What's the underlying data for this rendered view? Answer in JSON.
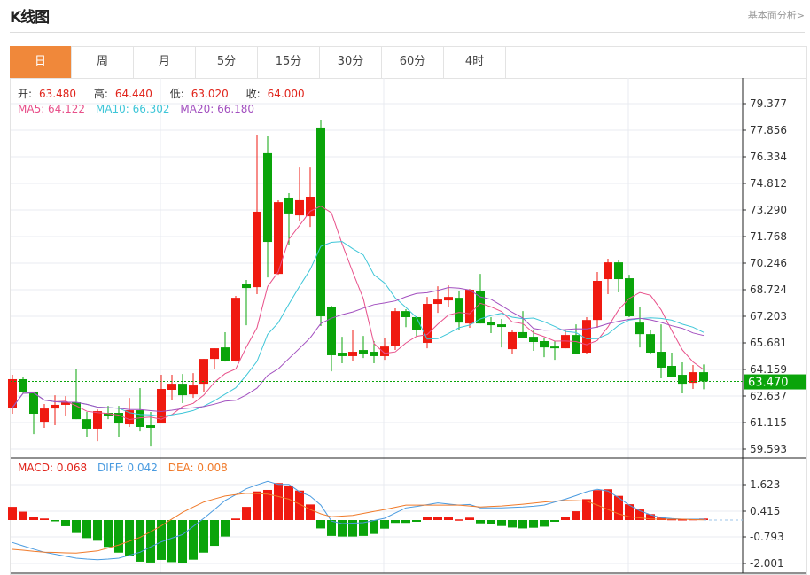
{
  "header": {
    "title": "K线图",
    "link": "基本面分析>"
  },
  "tabs": [
    {
      "label": "日",
      "active": true
    },
    {
      "label": "周"
    },
    {
      "label": "月"
    },
    {
      "label": "5分"
    },
    {
      "label": "15分"
    },
    {
      "label": "30分"
    },
    {
      "label": "60分"
    },
    {
      "label": "4时"
    }
  ],
  "ohlc_legend": {
    "open_label": "开:",
    "open": "63.480",
    "high_label": "高:",
    "high": "64.440",
    "low_label": "低:",
    "low": "63.020",
    "close_label": "收:",
    "close": "64.000"
  },
  "ma_legend": {
    "ma5": "MA5: 64.122",
    "ma10": "MA10: 66.302",
    "ma20": "MA20: 66.180"
  },
  "macd_legend": {
    "macd": "MACD: 0.068",
    "diff": "DIFF: 0.042",
    "dea": "DEA: 0.008"
  },
  "colors": {
    "up": "#0aa40a",
    "down": "#ef1a10",
    "ma5": "#e8508a",
    "ma10": "#3ec6d8",
    "ma20": "#a24fbf",
    "diff": "#4a9be0",
    "dea": "#f07a2a",
    "accent": "#f0883a"
  },
  "current_price": "63.470",
  "chart_data": [
    {
      "type": "candlestick",
      "y_ticks": [
        "79.377",
        "77.856",
        "76.334",
        "74.812",
        "73.290",
        "71.768",
        "70.246",
        "68.724",
        "67.203",
        "65.681",
        "64.159",
        "62.637",
        "61.115",
        "59.593"
      ],
      "ylim": [
        59.593,
        79.377
      ],
      "grid": true,
      "ohlc": [
        [
          63.6,
          63.85,
          61.62,
          61.97
        ],
        [
          62.84,
          63.7,
          62.79,
          63.6
        ],
        [
          61.62,
          62.89,
          60.45,
          62.89
        ],
        [
          61.92,
          62.18,
          60.81,
          61.16
        ],
        [
          62.13,
          62.68,
          60.96,
          61.92
        ],
        [
          62.28,
          62.63,
          61.52,
          62.13
        ],
        [
          61.31,
          64.21,
          61.31,
          62.28
        ],
        [
          60.76,
          61.72,
          60.3,
          61.31
        ],
        [
          61.77,
          61.87,
          60.04,
          60.76
        ],
        [
          61.52,
          62.07,
          61.31,
          61.67
        ],
        [
          61.06,
          62.07,
          60.3,
          61.67
        ],
        [
          61.82,
          62.53,
          60.86,
          61.01
        ],
        [
          60.86,
          63.09,
          60.6,
          61.82
        ],
        [
          60.81,
          61.72,
          59.79,
          60.96
        ],
        [
          63.04,
          63.85,
          61.06,
          61.06
        ],
        [
          63.34,
          63.85,
          62.38,
          62.99
        ],
        [
          62.68,
          63.9,
          62.23,
          63.34
        ],
        [
          63.24,
          63.95,
          62.53,
          62.73
        ],
        [
          64.76,
          64.76,
          62.84,
          63.34
        ],
        [
          65.37,
          65.37,
          64.21,
          64.76
        ],
        [
          64.66,
          66.29,
          64.61,
          65.42
        ],
        [
          68.26,
          68.37,
          64.61,
          64.66
        ],
        [
          68.82,
          69.28,
          66.69,
          69.03
        ],
        [
          73.19,
          77.6,
          68.47,
          68.87
        ],
        [
          71.46,
          77.5,
          69.43,
          76.54
        ],
        [
          73.74,
          73.85,
          69.58,
          69.63
        ],
        [
          73.09,
          74.25,
          71.31,
          74.0
        ],
        [
          73.85,
          75.72,
          72.68,
          72.98
        ],
        [
          74.05,
          75.72,
          72.32,
          72.93
        ],
        [
          67.2,
          78.41,
          66.64,
          78.01
        ],
        [
          64.97,
          67.81,
          64.05,
          67.71
        ],
        [
          64.92,
          66.03,
          64.51,
          65.12
        ],
        [
          65.17,
          66.44,
          64.66,
          64.92
        ],
        [
          65.07,
          66.08,
          64.81,
          65.27
        ],
        [
          64.92,
          65.78,
          64.51,
          65.17
        ],
        [
          65.47,
          65.98,
          64.71,
          64.92
        ],
        [
          67.5,
          67.66,
          65.27,
          65.52
        ],
        [
          67.15,
          67.61,
          66.58,
          67.5
        ],
        [
          66.44,
          67.2,
          66.03,
          67.15
        ],
        [
          67.91,
          68.31,
          65.37,
          65.68
        ],
        [
          68.16,
          68.92,
          67.4,
          67.91
        ],
        [
          68.31,
          68.97,
          67.71,
          68.11
        ],
        [
          66.84,
          68.67,
          66.44,
          68.26
        ],
        [
          68.72,
          68.77,
          66.54,
          66.79
        ],
        [
          66.79,
          69.63,
          66.79,
          68.67
        ],
        [
          66.69,
          67.15,
          66.24,
          66.89
        ],
        [
          66.59,
          67.05,
          65.42,
          66.74
        ],
        [
          66.29,
          66.39,
          65.07,
          65.32
        ],
        [
          65.98,
          67.5,
          65.93,
          66.29
        ],
        [
          65.73,
          66.44,
          65.22,
          66.03
        ],
        [
          65.42,
          65.93,
          64.86,
          65.78
        ],
        [
          65.37,
          65.78,
          64.71,
          65.47
        ],
        [
          66.13,
          66.39,
          65.37,
          65.37
        ],
        [
          65.07,
          66.74,
          65.07,
          66.13
        ],
        [
          66.99,
          67.15,
          65.07,
          65.12
        ],
        [
          69.23,
          69.74,
          66.54,
          66.99
        ],
        [
          70.29,
          70.5,
          68.47,
          69.33
        ],
        [
          69.33,
          70.45,
          68.57,
          70.29
        ],
        [
          67.2,
          69.58,
          67.15,
          69.38
        ],
        [
          66.18,
          67.71,
          65.42,
          66.84
        ],
        [
          65.12,
          66.39,
          65.07,
          66.18
        ],
        [
          64.26,
          66.74,
          63.65,
          65.17
        ],
        [
          63.75,
          65.12,
          63.7,
          64.36
        ],
        [
          63.34,
          64.56,
          62.79,
          63.85
        ],
        [
          64.0,
          64.41,
          63.04,
          63.39
        ],
        [
          63.48,
          64.44,
          63.02,
          64.0
        ]
      ],
      "series": [
        {
          "name": "MA5"
        },
        {
          "name": "MA10"
        },
        {
          "name": "MA20"
        }
      ]
    },
    {
      "type": "bar+line",
      "y_ticks": [
        "1.623",
        "0.415",
        "-0.793",
        "-2.001"
      ],
      "ylim": [
        -2.2,
        2.2
      ],
      "macd": [
        0.6,
        0.38,
        0.15,
        0.07,
        -0.03,
        -0.28,
        -0.59,
        -0.82,
        -0.94,
        -1.22,
        -1.48,
        -1.65,
        -1.89,
        -1.93,
        -1.81,
        -1.91,
        -1.96,
        -1.8,
        -1.48,
        -1.17,
        -0.75,
        0.07,
        0.6,
        1.3,
        1.37,
        1.68,
        1.56,
        1.34,
        0.71,
        -0.38,
        -0.72,
        -0.75,
        -0.75,
        -0.72,
        -0.63,
        -0.39,
        -0.13,
        -0.13,
        -0.08,
        0.13,
        0.16,
        0.12,
        0.03,
        0.11,
        -0.15,
        -0.2,
        -0.27,
        -0.34,
        -0.38,
        -0.35,
        -0.3,
        -0.08,
        0.15,
        0.4,
        0.95,
        1.36,
        1.4,
        1.1,
        0.72,
        0.48,
        0.27,
        0.11,
        0.05,
        0.04,
        0.05,
        0.068
      ],
      "diff": [
        -1.02,
        -1.17,
        -1.32,
        -1.46,
        -1.55,
        -1.64,
        -1.73,
        -1.77,
        -1.8,
        -1.77,
        -1.73,
        -1.6,
        -1.46,
        -1.22,
        -0.99,
        -0.82,
        -0.66,
        -0.29,
        0.08,
        0.48,
        0.89,
        1.15,
        1.42,
        1.6,
        1.76,
        1.62,
        1.62,
        1.29,
        1.09,
        0.68,
        -0.05,
        -0.16,
        -0.14,
        -0.12,
        -0.02,
        0.08,
        0.32,
        0.55,
        0.62,
        0.7,
        0.78,
        0.73,
        0.68,
        0.71,
        0.55,
        0.55,
        0.55,
        0.57,
        0.59,
        0.63,
        0.68,
        0.82,
        0.95,
        1.11,
        1.29,
        1.4,
        1.32,
        1.02,
        0.68,
        0.42,
        0.24,
        0.11,
        0.07,
        0.04,
        0.04,
        0.042
      ],
      "dea": [
        -1.33,
        -1.37,
        -1.42,
        -1.46,
        -1.47,
        -1.49,
        -1.5,
        -1.45,
        -1.4,
        -1.27,
        -1.13,
        -0.96,
        -0.79,
        -0.53,
        -0.26,
        0.05,
        0.35,
        0.59,
        0.82,
        0.96,
        1.09,
        1.16,
        1.22,
        1.2,
        1.18,
        1.07,
        0.95,
        0.72,
        0.48,
        0.28,
        0.15,
        0.18,
        0.21,
        0.3,
        0.39,
        0.48,
        0.58,
        0.68,
        0.68,
        0.68,
        0.68,
        0.68,
        0.68,
        0.64,
        0.59,
        0.62,
        0.64,
        0.68,
        0.72,
        0.77,
        0.82,
        0.86,
        0.89,
        0.88,
        0.86,
        0.68,
        0.48,
        0.28,
        0.15,
        0.1,
        0.05,
        0.04,
        0.04,
        0.04,
        0.02,
        0.008
      ]
    }
  ]
}
